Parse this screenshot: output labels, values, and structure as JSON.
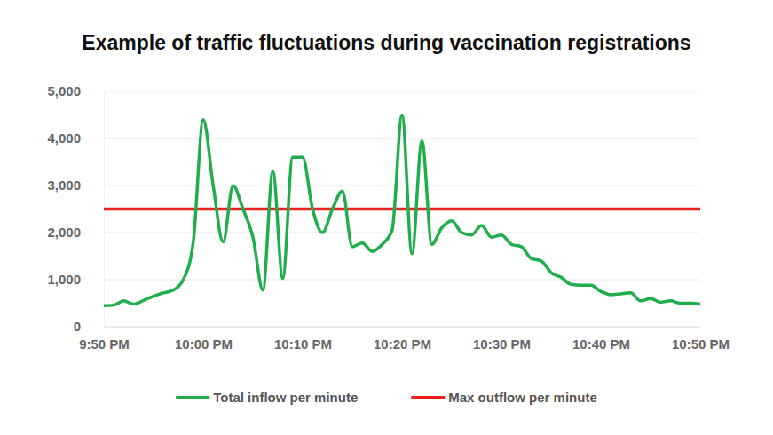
{
  "chart_data": {
    "type": "line",
    "title": "Example of traffic fluctuations during vaccination registrations",
    "x": [
      0,
      1,
      2,
      3,
      4,
      5,
      6,
      7,
      8,
      9,
      10,
      11,
      12,
      13,
      14,
      15,
      16,
      17,
      18,
      19,
      20,
      21,
      22,
      23,
      24,
      25,
      26,
      27,
      28,
      29,
      30,
      31,
      32,
      33,
      34,
      35,
      36,
      37,
      38,
      39,
      40,
      41,
      42,
      43,
      44,
      45,
      46,
      47,
      48,
      49,
      50,
      51,
      52,
      53,
      54,
      55,
      56,
      57,
      58,
      59,
      60
    ],
    "xlim": [
      0,
      60
    ],
    "xticks": [
      {
        "value": 0,
        "label": "9:50 PM"
      },
      {
        "value": 10,
        "label": "10:00 PM"
      },
      {
        "value": 20,
        "label": "10:10 PM"
      },
      {
        "value": 30,
        "label": "10:20 PM"
      },
      {
        "value": 40,
        "label": "10:30 PM"
      },
      {
        "value": 50,
        "label": "10:40 PM"
      },
      {
        "value": 60,
        "label": "10:50 PM"
      }
    ],
    "ylim": [
      0,
      5000
    ],
    "yticks": [
      0,
      {
        "value": 1000,
        "label": "1,000"
      },
      {
        "value": 2000,
        "label": "2,000"
      },
      {
        "value": 3000,
        "label": "3,000"
      },
      {
        "value": 4000,
        "label": "4,000"
      },
      {
        "value": 5000,
        "label": "5,000"
      }
    ],
    "grid": true,
    "legend": "bottom",
    "series": [
      {
        "name": "Total inflow per minute",
        "color": "#1fae4b",
        "values": [
          450,
          460,
          550,
          480,
          560,
          650,
          720,
          780,
          1000,
          1800,
          4400,
          3000,
          1800,
          3000,
          2500,
          1900,
          780,
          3300,
          1030,
          3600,
          3600,
          2500,
          2000,
          2500,
          2880,
          1700,
          1780,
          1600,
          1750,
          2050,
          4500,
          1550,
          3950,
          1750,
          2100,
          2250,
          2000,
          1950,
          2150,
          1900,
          1950,
          1750,
          1700,
          1450,
          1400,
          1150,
          1050,
          900,
          880,
          880,
          750,
          680,
          700,
          720,
          550,
          600,
          520,
          550,
          500,
          500,
          480
        ]
      },
      {
        "name": "Max outflow per minute",
        "color": "#e8201f",
        "values": [
          2500,
          2500,
          2500,
          2500,
          2500,
          2500,
          2500,
          2500,
          2500,
          2500,
          2500,
          2500,
          2500,
          2500,
          2500,
          2500,
          2500,
          2500,
          2500,
          2500,
          2500,
          2500,
          2500,
          2500,
          2500,
          2500,
          2500,
          2500,
          2500,
          2500,
          2500,
          2500,
          2500,
          2500,
          2500,
          2500,
          2500,
          2500,
          2500,
          2500,
          2500,
          2500,
          2500,
          2500,
          2500,
          2500,
          2500,
          2500,
          2500,
          2500,
          2500,
          2500,
          2500,
          2500,
          2500,
          2500,
          2500,
          2500,
          2500,
          2500,
          2500
        ]
      }
    ]
  }
}
